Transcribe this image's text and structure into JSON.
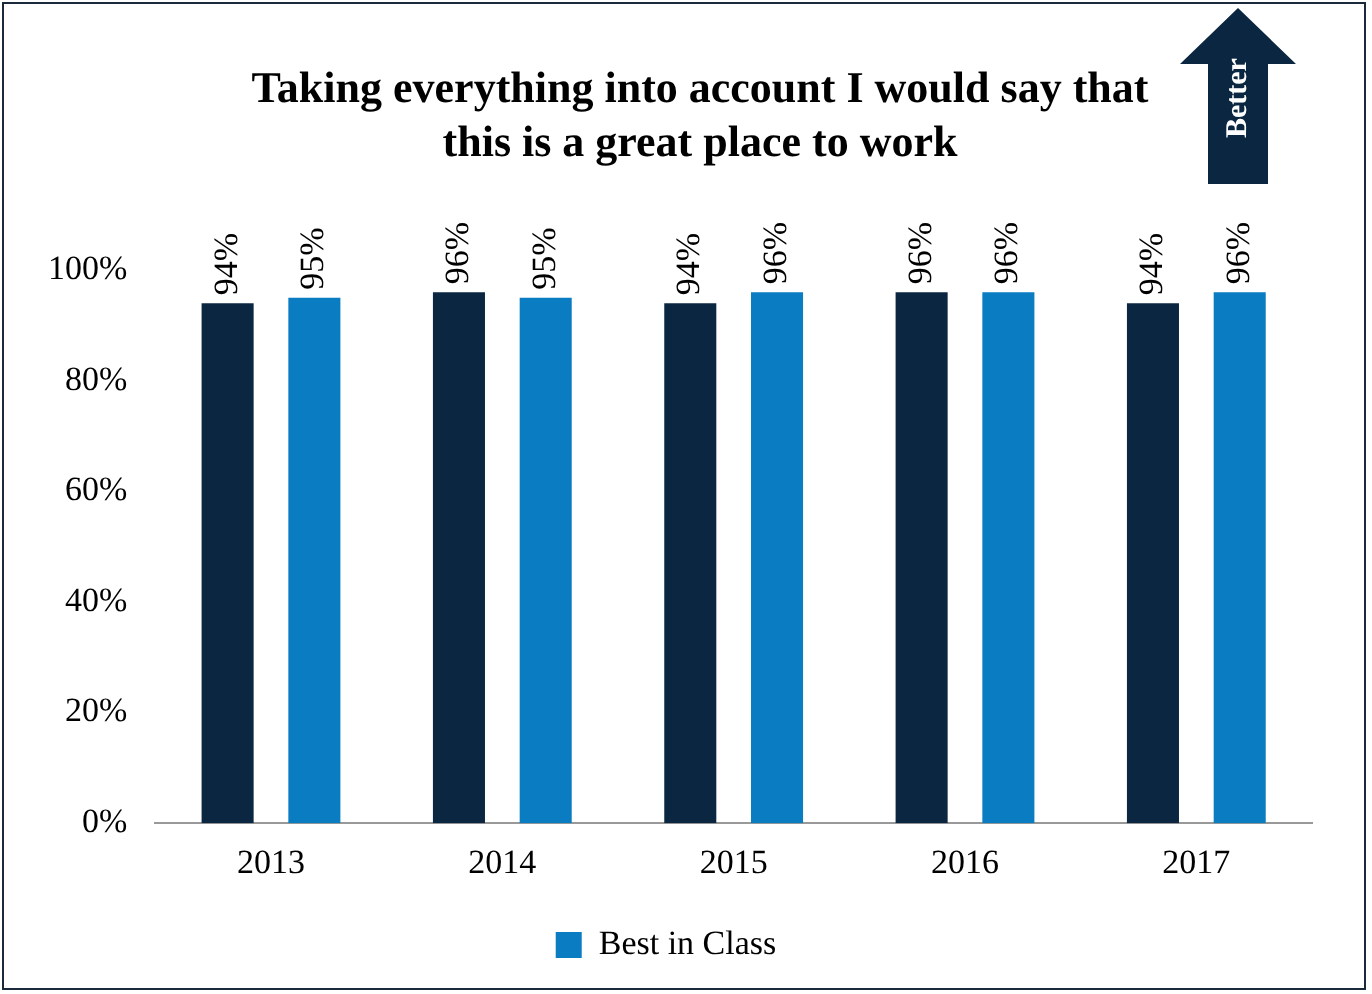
{
  "chart_data": {
    "type": "bar",
    "title": "Taking everything into account I would say that this is a great place to work",
    "categories": [
      "2013",
      "2014",
      "2015",
      "2016",
      "2017"
    ],
    "series": [
      {
        "color": "#0b2640",
        "values": [
          94,
          96,
          94,
          96,
          94
        ],
        "value_labels": [
          "94%",
          "96%",
          "94%",
          "96%",
          "94%"
        ]
      },
      {
        "name": "Best in Class",
        "color": "#0a7cc1",
        "values": [
          95,
          95,
          96,
          96,
          96
        ],
        "value_labels": [
          "95%",
          "95%",
          "96%",
          "96%",
          "96%"
        ]
      }
    ],
    "ylim": [
      0,
      100
    ],
    "yticks": [
      {
        "value": 0,
        "label": "0%"
      },
      {
        "value": 20,
        "label": "20%"
      },
      {
        "value": 40,
        "label": "40%"
      },
      {
        "value": 60,
        "label": "60%"
      },
      {
        "value": 80,
        "label": "80%"
      },
      {
        "value": 100,
        "label": "100%"
      }
    ],
    "grid": false,
    "legend": "bottom",
    "annotations": [
      "Better"
    ]
  }
}
